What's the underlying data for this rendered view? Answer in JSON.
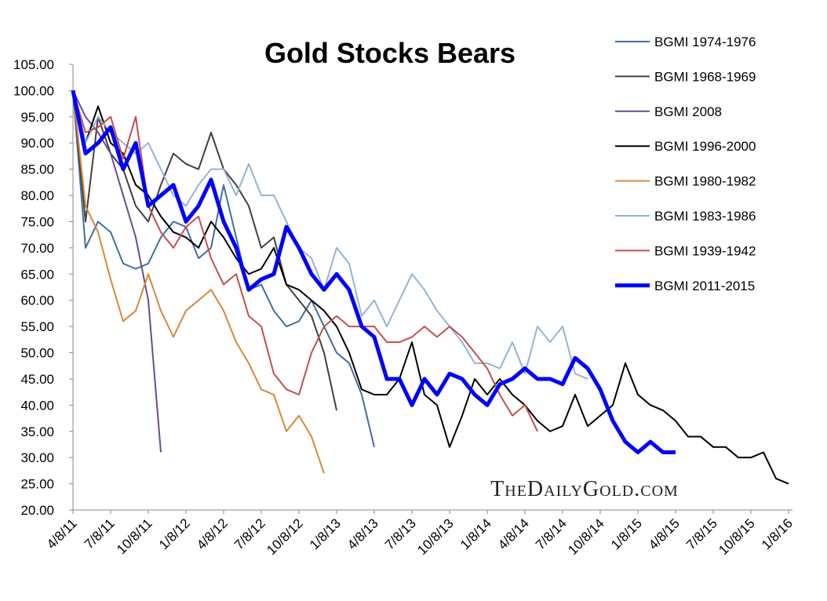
{
  "chart_data": {
    "type": "line",
    "title": "Gold Stocks Bears",
    "watermark": "TheDailyGold.com",
    "x": [
      "4/8/11",
      "5/8/11",
      "6/8/11",
      "7/8/11",
      "8/8/11",
      "9/8/11",
      "10/8/11",
      "11/8/11",
      "12/8/11",
      "1/8/12",
      "2/8/12",
      "3/8/12",
      "4/8/12",
      "5/8/12",
      "6/8/12",
      "7/8/12",
      "8/8/12",
      "9/8/12",
      "10/8/12",
      "11/8/12",
      "12/8/12",
      "1/8/13",
      "2/8/13",
      "3/8/13",
      "4/8/13",
      "5/8/13",
      "6/8/13",
      "7/8/13",
      "8/8/13",
      "9/8/13",
      "10/8/13",
      "11/8/13",
      "12/8/13",
      "1/8/14",
      "2/8/14",
      "3/8/14",
      "4/8/14",
      "5/8/14",
      "6/8/14",
      "7/8/14",
      "8/8/14",
      "9/8/14",
      "10/8/14",
      "11/8/14",
      "12/8/14",
      "1/8/15",
      "2/8/15",
      "3/8/15",
      "4/8/15",
      "5/8/15",
      "6/8/15",
      "7/8/15",
      "8/8/15",
      "9/8/15",
      "10/8/15",
      "11/8/15",
      "12/8/15",
      "1/8/16"
    ],
    "xticks": [
      "4/8/11",
      "7/8/11",
      "10/8/11",
      "1/8/12",
      "4/8/12",
      "7/8/12",
      "10/8/12",
      "1/8/13",
      "4/8/13",
      "7/8/13",
      "10/8/13",
      "1/8/14",
      "4/8/14",
      "7/8/14",
      "10/8/14",
      "1/8/15",
      "4/8/15",
      "7/8/15",
      "10/8/15",
      "1/8/16"
    ],
    "ylim": [
      20,
      105
    ],
    "yticks": [
      {
        "value": 20,
        "label": "20.00"
      },
      {
        "value": 25,
        "label": "25.00"
      },
      {
        "value": 30,
        "label": "30.00"
      },
      {
        "value": 35,
        "label": "35.00"
      },
      {
        "value": 40,
        "label": "40.00"
      },
      {
        "value": 45,
        "label": "45.00"
      },
      {
        "value": 50,
        "label": "50.00"
      },
      {
        "value": 55,
        "label": "55.00"
      },
      {
        "value": 60,
        "label": "60.00"
      },
      {
        "value": 65,
        "label": "65.00"
      },
      {
        "value": 70,
        "label": "70.00"
      },
      {
        "value": 75,
        "label": "75.00"
      },
      {
        "value": 80,
        "label": "80.00"
      },
      {
        "value": 85,
        "label": "85.00"
      },
      {
        "value": 90,
        "label": "90.00"
      },
      {
        "value": 95,
        "label": "95.00"
      },
      {
        "value": 100,
        "label": "100.00"
      },
      {
        "value": 105,
        "label": "105.00"
      }
    ],
    "series": [
      {
        "name": "BGMI 1974-1976",
        "color": "#3f6fa0",
        "line_width": 2,
        "values": [
          100,
          70,
          75,
          73,
          67,
          66,
          67,
          72,
          75,
          74,
          68,
          70,
          82,
          72,
          62,
          63,
          58,
          55,
          56,
          60,
          55,
          50,
          48,
          42,
          32,
          null,
          null,
          null,
          null,
          null,
          null,
          null,
          null,
          null,
          null,
          null,
          null,
          null,
          null,
          null,
          null,
          null,
          null,
          null,
          null,
          null,
          null,
          null,
          null,
          null,
          null,
          null,
          null,
          null,
          null,
          null,
          null,
          null
        ]
      },
      {
        "name": "BGMI 1968-1969",
        "color": "#404040",
        "line_width": 2,
        "values": [
          100,
          75,
          95,
          88,
          85,
          78,
          75,
          82,
          88,
          86,
          85,
          92,
          85,
          82,
          78,
          70,
          72,
          63,
          60,
          57,
          50,
          39,
          null,
          null,
          null,
          null,
          null,
          null,
          null,
          null,
          null,
          null,
          null,
          null,
          null,
          null,
          null,
          null,
          null,
          null,
          null,
          null,
          null,
          null,
          null,
          null,
          null,
          null,
          null,
          null,
          null,
          null,
          null,
          null,
          null,
          null,
          null,
          null
        ]
      },
      {
        "name": "BGMI 2008",
        "color": "#6a4c93",
        "line_width": 2,
        "values": [
          100,
          95,
          92,
          88,
          80,
          72,
          60,
          31,
          null,
          null,
          null,
          null,
          null,
          null,
          null,
          null,
          null,
          null,
          null,
          null,
          null,
          null,
          null,
          null,
          null,
          null,
          null,
          null,
          null,
          null,
          null,
          null,
          null,
          null,
          null,
          null,
          null,
          null,
          null,
          null,
          null,
          null,
          null,
          null,
          null,
          null,
          null,
          null,
          null,
          null,
          null,
          null,
          null,
          null,
          null,
          null,
          null,
          null
        ]
      },
      {
        "name": "BGMI 1996-2000",
        "color": "#000000",
        "line_width": 2,
        "values": [
          100,
          90,
          97,
          90,
          88,
          82,
          80,
          76,
          73,
          72,
          70,
          75,
          72,
          68,
          65,
          66,
          70,
          63,
          62,
          60,
          58,
          55,
          50,
          43,
          42,
          42,
          45,
          52,
          42,
          40,
          32,
          38,
          45,
          42,
          45,
          42,
          40,
          37,
          35,
          36,
          42,
          36,
          38,
          40,
          48,
          42,
          40,
          39,
          37,
          34,
          34,
          32,
          32,
          30,
          30,
          31,
          26,
          25
        ]
      },
      {
        "name": "BGMI 1980-1982",
        "color": "#d9873a",
        "line_width": 2,
        "values": [
          100,
          78,
          73,
          64,
          56,
          58,
          65,
          58,
          53,
          58,
          60,
          62,
          58,
          52,
          48,
          43,
          42,
          35,
          38,
          34,
          27,
          null,
          null,
          null,
          null,
          null,
          null,
          null,
          null,
          null,
          null,
          null,
          null,
          null,
          null,
          null,
          null,
          null,
          null,
          null,
          null,
          null,
          null,
          null,
          null,
          null,
          null,
          null,
          null,
          null,
          null,
          null,
          null,
          null,
          null,
          null,
          null,
          null
        ]
      },
      {
        "name": "BGMI 1983-1986",
        "color": "#95b3d7",
        "line_width": 2,
        "values": [
          100,
          90,
          95,
          92,
          90,
          88,
          90,
          85,
          80,
          78,
          82,
          85,
          85,
          80,
          86,
          80,
          80,
          75,
          70,
          68,
          62,
          70,
          67,
          57,
          60,
          55,
          60,
          65,
          62,
          58,
          55,
          52,
          48,
          48,
          47,
          52,
          46,
          55,
          52,
          55,
          46,
          45,
          null,
          null,
          null,
          null,
          null,
          null,
          null,
          null,
          null,
          null,
          null,
          null,
          null,
          null,
          null,
          null
        ]
      },
      {
        "name": "BGMI 1939-1942",
        "color": "#c0504d",
        "line_width": 2,
        "values": [
          100,
          92,
          93,
          95,
          87,
          95,
          78,
          73,
          70,
          74,
          76,
          68,
          63,
          65,
          57,
          55,
          46,
          43,
          42,
          50,
          55,
          57,
          55,
          55,
          55,
          52,
          52,
          53,
          55,
          53,
          55,
          53,
          50,
          47,
          42,
          38,
          40,
          35,
          null,
          null,
          null,
          null,
          null,
          null,
          null,
          null,
          null,
          null,
          null,
          null,
          null,
          null,
          null,
          null,
          null,
          null,
          null,
          null
        ]
      },
      {
        "name": "BGMI 2011-2015",
        "color": "#0000ff",
        "line_width": 5,
        "values": [
          100,
          88,
          90,
          93,
          85,
          90,
          78,
          80,
          82,
          75,
          78,
          83,
          75,
          70,
          62,
          64,
          65,
          74,
          70,
          65,
          62,
          65,
          62,
          55,
          53,
          45,
          45,
          40,
          45,
          42,
          46,
          45,
          42,
          40,
          44,
          45,
          47,
          45,
          45,
          44,
          49,
          47,
          43,
          37,
          33,
          31,
          33,
          31,
          31,
          null,
          null,
          null,
          null,
          null,
          null,
          null,
          null,
          null
        ]
      }
    ]
  }
}
